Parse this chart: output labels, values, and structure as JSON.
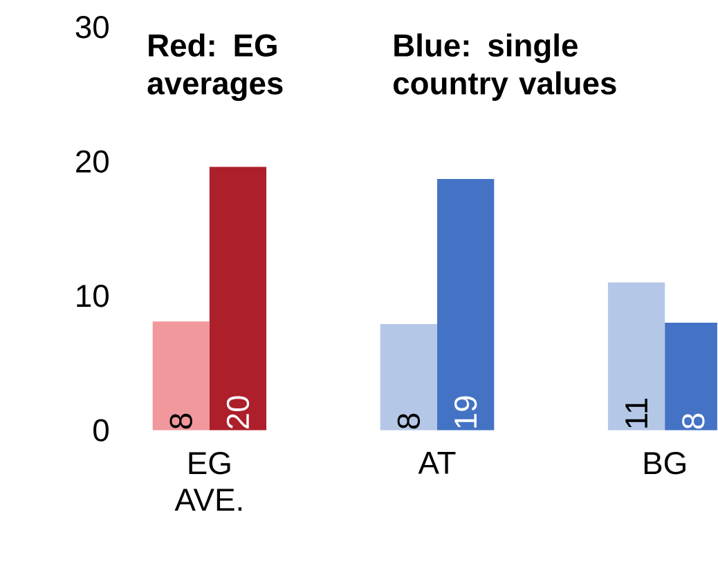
{
  "chart_data": {
    "type": "bar",
    "categories": [
      "EG AVE.",
      "AT",
      "BG"
    ],
    "series": [
      {
        "colors": [
          "#f0989c",
          "#b4c7e7",
          "#b4c7e7"
        ],
        "values": [
          8.1,
          7.9,
          11.0
        ],
        "value_labels": [
          "8",
          "8",
          "11"
        ]
      },
      {
        "colors": [
          "#ad1f2b",
          "#4472c4",
          "#4472c4"
        ],
        "values": [
          19.6,
          18.7,
          8.0
        ],
        "value_labels": [
          "20",
          "19",
          "8"
        ]
      }
    ],
    "ylim": [
      0,
      30
    ],
    "yticks": [
      0,
      10,
      20,
      30
    ],
    "annotations": [
      "Red: EG averages",
      "Blue: single country values"
    ]
  }
}
